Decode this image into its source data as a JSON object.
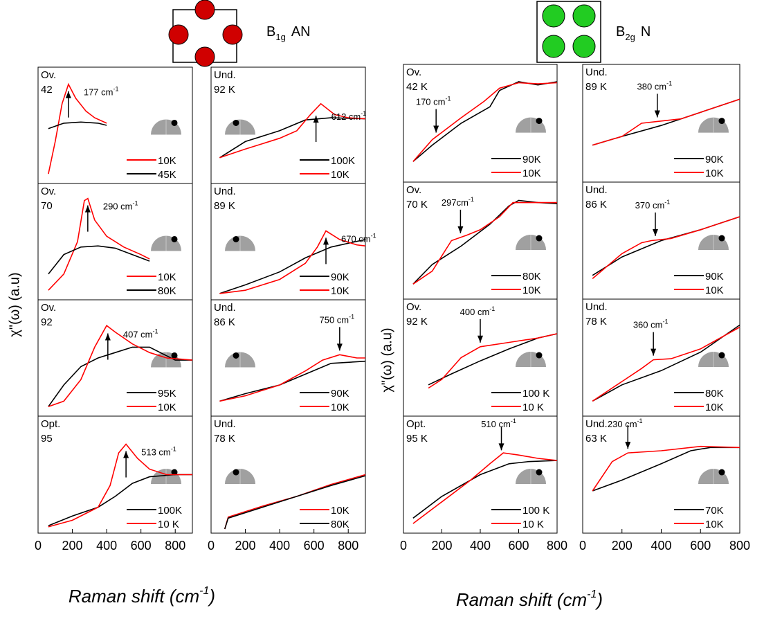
{
  "groups": [
    {
      "header": {
        "main": "B",
        "sub": "1g",
        "rest": "AN"
      },
      "ylabel": "χ\"(ω) (a.u)",
      "xlabel": {
        "text": "Raman shift (cm",
        "sup": "-1",
        "end": ")"
      }
    },
    {
      "header": {
        "main": "B",
        "sub": "2g",
        "rest": "N"
      },
      "ylabel": "χ\"(ω) (a.u)",
      "xlabel": {
        "text": "Raman shift  (cm",
        "sup": "-1",
        "end": ")"
      }
    }
  ],
  "chart_data": [
    {
      "type": "line",
      "label": [
        "Ov.",
        "42"
      ],
      "xlim": [
        0,
        900
      ],
      "ylim": [
        0,
        1
      ],
      "peak": 177,
      "arrow": "up",
      "annotation": {
        "text": "177 cm",
        "sup": "-1"
      },
      "series": [
        {
          "name": "10K",
          "color": "#ff0000",
          "x": [
            60,
            100,
            140,
            177,
            220,
            280,
            330,
            400
          ],
          "values": [
            0.05,
            0.35,
            0.7,
            0.88,
            0.75,
            0.63,
            0.57,
            0.52
          ]
        },
        {
          "name": "45K",
          "color": "#000000",
          "x": [
            60,
            150,
            250,
            350,
            400
          ],
          "values": [
            0.47,
            0.52,
            0.53,
            0.52,
            0.5
          ]
        }
      ]
    },
    {
      "type": "line",
      "label": [
        "Ov.",
        "70"
      ],
      "xlim": [
        0,
        900
      ],
      "ylim": [
        0,
        1
      ],
      "peak": 290,
      "arrow": "up",
      "annotation": {
        "text": "290 cm",
        "sup": "-1"
      },
      "series": [
        {
          "name": "10K",
          "color": "#ff0000",
          "x": [
            60,
            150,
            230,
            270,
            290,
            330,
            400,
            500,
            600,
            650
          ],
          "values": [
            0.05,
            0.2,
            0.5,
            0.88,
            0.9,
            0.7,
            0.55,
            0.45,
            0.38,
            0.34
          ]
        },
        {
          "name": "80K",
          "color": "#000000",
          "x": [
            60,
            150,
            250,
            350,
            450,
            550,
            650
          ],
          "values": [
            0.2,
            0.38,
            0.45,
            0.46,
            0.44,
            0.38,
            0.32
          ]
        }
      ]
    },
    {
      "type": "line",
      "label": [
        "Ov.",
        "92"
      ],
      "xlim": [
        0,
        900
      ],
      "ylim": [
        0,
        1
      ],
      "peak": 407,
      "arrow": "up",
      "annotation": {
        "text": "407 cm",
        "sup": "-1"
      },
      "series": [
        {
          "name": "95K",
          "color": "#000000",
          "x": [
            60,
            150,
            250,
            350,
            450,
            550,
            650,
            800,
            900
          ],
          "values": [
            0.05,
            0.25,
            0.42,
            0.5,
            0.55,
            0.6,
            0.6,
            0.48,
            0.48
          ]
        },
        {
          "name": "10K",
          "color": "#ff0000",
          "x": [
            60,
            150,
            250,
            330,
            400,
            450,
            550,
            650,
            750,
            900
          ],
          "values": [
            0.05,
            0.1,
            0.3,
            0.6,
            0.8,
            0.74,
            0.63,
            0.55,
            0.5,
            0.48
          ]
        }
      ]
    },
    {
      "type": "line",
      "label": [
        "Opt.",
        "95"
      ],
      "xlim": [
        0,
        900
      ],
      "ylim": [
        0,
        1
      ],
      "xticks": [
        0,
        200,
        400,
        600,
        800
      ],
      "peak": 513,
      "arrow": "up",
      "annotation": {
        "text": "513 cm",
        "sup": "-1"
      },
      "series": [
        {
          "name": "100K",
          "color": "#000000",
          "x": [
            60,
            200,
            350,
            450,
            550,
            650,
            800,
            900
          ],
          "values": [
            0.03,
            0.12,
            0.2,
            0.3,
            0.42,
            0.48,
            0.5,
            0.5
          ]
        },
        {
          "name": "10 K",
          "color": "#ff0000",
          "x": [
            60,
            200,
            350,
            420,
            470,
            513,
            580,
            650,
            750,
            900
          ],
          "values": [
            0.02,
            0.08,
            0.2,
            0.4,
            0.7,
            0.78,
            0.65,
            0.55,
            0.5,
            0.5
          ]
        }
      ]
    },
    {
      "type": "line",
      "label": [
        "Und.",
        "92 K"
      ],
      "xlim": [
        0,
        900
      ],
      "ylim": [
        0,
        1
      ],
      "peak": 612,
      "arrow": "up",
      "annotation": {
        "text": "612 cm",
        "sup": "-1"
      },
      "series": [
        {
          "name": "100K",
          "color": "#000000",
          "x": [
            50,
            200,
            400,
            550,
            700,
            900
          ],
          "values": [
            0.2,
            0.35,
            0.45,
            0.55,
            0.57,
            0.56
          ]
        },
        {
          "name": "10K",
          "color": "#ff0000",
          "x": [
            50,
            200,
            400,
            500,
            580,
            640,
            720,
            800,
            900
          ],
          "values": [
            0.2,
            0.28,
            0.38,
            0.45,
            0.6,
            0.7,
            0.6,
            0.57,
            0.56
          ]
        }
      ]
    },
    {
      "type": "line",
      "label": [
        "Und.",
        "89 K"
      ],
      "xlim": [
        0,
        900
      ],
      "ylim": [
        0,
        1
      ],
      "peak": 670,
      "arrow": "up",
      "annotation": {
        "text": "670 cm",
        "sup": "-1"
      },
      "series": [
        {
          "name": "90K",
          "color": "#000000",
          "x": [
            50,
            200,
            400,
            550,
            700,
            900
          ],
          "values": [
            0.02,
            0.1,
            0.22,
            0.35,
            0.45,
            0.52
          ]
        },
        {
          "name": "10K",
          "color": "#ff0000",
          "x": [
            50,
            200,
            400,
            550,
            620,
            670,
            750,
            850,
            900
          ],
          "values": [
            0.02,
            0.05,
            0.15,
            0.3,
            0.45,
            0.6,
            0.52,
            0.47,
            0.46
          ]
        }
      ]
    },
    {
      "type": "line",
      "label": [
        "Und.",
        "86 K"
      ],
      "xlim": [
        0,
        900
      ],
      "ylim": [
        0,
        1
      ],
      "peak": 750,
      "arrow": "down",
      "annotation": {
        "text": "750 cm",
        "sup": "-1"
      },
      "series": [
        {
          "name": "90K",
          "color": "#000000",
          "x": [
            50,
            200,
            400,
            550,
            700,
            900
          ],
          "values": [
            0.1,
            0.17,
            0.25,
            0.35,
            0.45,
            0.47
          ]
        },
        {
          "name": "10K",
          "color": "#ff0000",
          "x": [
            50,
            200,
            400,
            550,
            650,
            750,
            850,
            900
          ],
          "values": [
            0.1,
            0.15,
            0.25,
            0.38,
            0.48,
            0.53,
            0.5,
            0.5
          ]
        }
      ]
    },
    {
      "type": "line",
      "label": [
        "Und.",
        "78 K"
      ],
      "xlim": [
        0,
        900
      ],
      "ylim": [
        0,
        1
      ],
      "xticks": [
        0,
        200,
        400,
        600,
        800
      ],
      "series": [
        {
          "name": "10K",
          "color": "#ff0000",
          "x": [
            80,
            100,
            300,
            500,
            700,
            900
          ],
          "values": [
            0.0,
            0.11,
            0.21,
            0.3,
            0.41,
            0.5
          ]
        },
        {
          "name": "80K",
          "color": "#000000",
          "x": [
            80,
            100,
            300,
            500,
            700,
            900
          ],
          "values": [
            0.0,
            0.1,
            0.2,
            0.3,
            0.4,
            0.49
          ]
        }
      ]
    },
    {
      "type": "line",
      "label": [
        "Ov.",
        "42 K"
      ],
      "xlim": [
        0,
        800
      ],
      "ylim": [
        0,
        1
      ],
      "peak": 170,
      "arrow": "down",
      "annotation": {
        "text": "170 cm",
        "sup": "-1"
      },
      "series": [
        {
          "name": "90K",
          "color": "#000000",
          "x": [
            50,
            150,
            300,
            450,
            500,
            600,
            700,
            800
          ],
          "values": [
            0.15,
            0.3,
            0.5,
            0.65,
            0.8,
            0.88,
            0.85,
            0.88
          ]
        },
        {
          "name": "10K",
          "color": "#ff0000",
          "x": [
            50,
            150,
            300,
            420,
            500,
            600,
            700,
            800
          ],
          "values": [
            0.15,
            0.35,
            0.55,
            0.7,
            0.82,
            0.87,
            0.86,
            0.87
          ]
        }
      ]
    },
    {
      "type": "line",
      "label": [
        "Ov.",
        "70 K"
      ],
      "xlim": [
        0,
        800
      ],
      "ylim": [
        0,
        1
      ],
      "peak": 297,
      "arrow": "down",
      "annotation": {
        "text": "297cm",
        "sup": "-1"
      },
      "series": [
        {
          "name": "80K",
          "color": "#000000",
          "x": [
            50,
            150,
            300,
            450,
            550,
            600,
            700,
            800
          ],
          "values": [
            0.1,
            0.28,
            0.45,
            0.65,
            0.82,
            0.87,
            0.85,
            0.84
          ]
        },
        {
          "name": "10K",
          "color": "#ff0000",
          "x": [
            50,
            150,
            250,
            330,
            400,
            500,
            570,
            700,
            800
          ],
          "values": [
            0.1,
            0.22,
            0.5,
            0.55,
            0.6,
            0.72,
            0.85,
            0.85,
            0.85
          ]
        }
      ]
    },
    {
      "type": "line",
      "label": [
        "Ov.",
        "92 K"
      ],
      "xlim": [
        0,
        800
      ],
      "ylim": [
        0,
        1
      ],
      "peak": 400,
      "arrow": "down",
      "annotation": {
        "text": "400 cm",
        "sup": "-1"
      },
      "series": [
        {
          "name": "100 K",
          "color": "#000000",
          "x": [
            130,
            250,
            400,
            550,
            700,
            800
          ],
          "values": [
            0.25,
            0.35,
            0.47,
            0.58,
            0.68,
            0.72
          ]
        },
        {
          "name": "10 K",
          "color": "#ff0000",
          "x": [
            130,
            200,
            300,
            400,
            550,
            700,
            800
          ],
          "values": [
            0.22,
            0.3,
            0.5,
            0.6,
            0.64,
            0.68,
            0.72
          ]
        }
      ]
    },
    {
      "type": "line",
      "label": [
        "Opt.",
        "95 K"
      ],
      "xlim": [
        0,
        800
      ],
      "ylim": [
        0,
        1
      ],
      "xticks": [
        0,
        200,
        400,
        600,
        800
      ],
      "peak": 510,
      "arrow": "down",
      "annotation": {
        "text": "510 cm",
        "sup": "-1"
      },
      "series": [
        {
          "name": "100 K",
          "color": "#000000",
          "x": [
            50,
            200,
            400,
            550,
            650,
            800
          ],
          "values": [
            0.1,
            0.3,
            0.5,
            0.6,
            0.62,
            0.63
          ]
        },
        {
          "name": "10 K",
          "color": "#ff0000",
          "x": [
            50,
            200,
            350,
            450,
            520,
            600,
            700,
            800
          ],
          "values": [
            0.05,
            0.25,
            0.45,
            0.6,
            0.7,
            0.68,
            0.65,
            0.63
          ]
        }
      ]
    },
    {
      "type": "line",
      "label": [
        "Und.",
        "89 K"
      ],
      "xlim": [
        0,
        800
      ],
      "ylim": [
        0,
        1
      ],
      "peak": 380,
      "arrow": "down",
      "annotation": {
        "text": "380 cm",
        "sup": "-1"
      },
      "series": [
        {
          "name": "90K",
          "color": "#000000",
          "x": [
            50,
            200,
            400,
            600,
            800
          ],
          "values": [
            0.3,
            0.38,
            0.48,
            0.6,
            0.72
          ]
        },
        {
          "name": "10K",
          "color": "#ff0000",
          "x": [
            50,
            200,
            300,
            400,
            500,
            600,
            800
          ],
          "values": [
            0.3,
            0.38,
            0.5,
            0.52,
            0.54,
            0.6,
            0.72
          ]
        }
      ]
    },
    {
      "type": "line",
      "label": [
        "Und.",
        "86 K"
      ],
      "xlim": [
        0,
        800
      ],
      "ylim": [
        0,
        1
      ],
      "peak": 370,
      "arrow": "down",
      "annotation": {
        "text": "370 cm",
        "sup": "-1"
      },
      "series": [
        {
          "name": "90K",
          "color": "#000000",
          "x": [
            50,
            200,
            400,
            600,
            800
          ],
          "values": [
            0.18,
            0.35,
            0.5,
            0.6,
            0.72
          ]
        },
        {
          "name": "10K",
          "color": "#ff0000",
          "x": [
            50,
            200,
            300,
            350,
            450,
            600,
            800
          ],
          "values": [
            0.15,
            0.38,
            0.48,
            0.5,
            0.52,
            0.6,
            0.72
          ]
        }
      ]
    },
    {
      "type": "line",
      "label": [
        "Und.",
        "78 K"
      ],
      "xlim": [
        0,
        800
      ],
      "ylim": [
        0,
        1
      ],
      "peak": 360,
      "arrow": "down",
      "annotation": {
        "text": "360 cm",
        "sup": "-1"
      },
      "series": [
        {
          "name": "80K",
          "color": "#000000",
          "x": [
            50,
            200,
            400,
            600,
            800
          ],
          "values": [
            0.1,
            0.25,
            0.38,
            0.55,
            0.8
          ]
        },
        {
          "name": "10K",
          "color": "#ff0000",
          "x": [
            50,
            200,
            300,
            360,
            450,
            600,
            800
          ],
          "values": [
            0.1,
            0.28,
            0.4,
            0.48,
            0.49,
            0.58,
            0.78
          ]
        }
      ]
    },
    {
      "type": "line",
      "label": [
        "Und.",
        "63 K"
      ],
      "xlim": [
        0,
        800
      ],
      "ylim": [
        0,
        1
      ],
      "xticks": [
        0,
        200,
        400,
        600,
        800
      ],
      "peak": 230,
      "arrow": "down",
      "annotation": {
        "text": "230 cm",
        "sup": "-1"
      },
      "series": [
        {
          "name": "70K",
          "color": "#000000",
          "x": [
            50,
            200,
            400,
            550,
            650,
            800
          ],
          "values": [
            0.35,
            0.45,
            0.6,
            0.72,
            0.75,
            0.75
          ]
        },
        {
          "name": "10K",
          "color": "#ff0000",
          "x": [
            50,
            150,
            230,
            400,
            600,
            800
          ],
          "values": [
            0.35,
            0.62,
            0.7,
            0.72,
            0.76,
            0.75
          ]
        }
      ]
    }
  ]
}
